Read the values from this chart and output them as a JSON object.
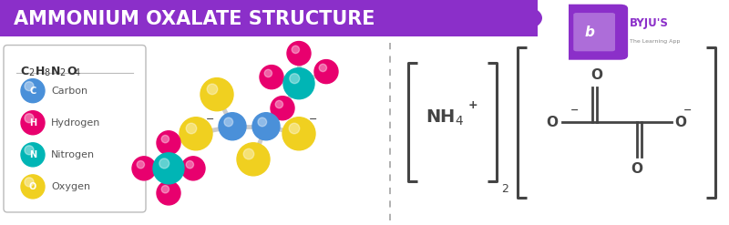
{
  "title": "AMMONIUM OXALATE STRUCTURE",
  "title_bg": "#8B2FC9",
  "title_color": "#FFFFFF",
  "bg_color": "#FFFFFF",
  "legend_items": [
    {
      "label": "Carbon",
      "color": "#4A90D9",
      "letter": "C"
    },
    {
      "label": "Hydrogen",
      "color": "#E8006E",
      "letter": "H"
    },
    {
      "label": "Nitrogen",
      "color": "#00B5B5",
      "letter": "N"
    },
    {
      "label": "Oxygen",
      "color": "#F0D020",
      "letter": "O"
    }
  ],
  "atom_colors": {
    "C": "#4A90D9",
    "H": "#E8006E",
    "N": "#00B5B5",
    "O": "#F0D020"
  },
  "bracket_color": "#444444",
  "text_color": "#444444",
  "byju_purple": "#8B2FC9"
}
